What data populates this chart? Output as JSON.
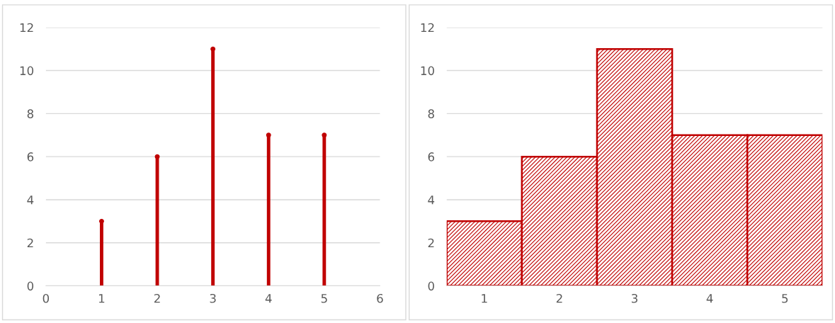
{
  "chart_data": [
    {
      "type": "lollipop",
      "x": [
        1,
        2,
        3,
        4,
        5
      ],
      "values": [
        3,
        6,
        11,
        7,
        7
      ],
      "color": "#c00000",
      "xlim": [
        0,
        6
      ],
      "xticks": [
        0,
        1,
        2,
        3,
        4,
        5,
        6
      ],
      "ylim": [
        0,
        12
      ],
      "yticks": [
        0,
        2,
        4,
        6,
        8,
        10,
        12
      ],
      "grid": "y",
      "marker": "circle"
    },
    {
      "type": "bar",
      "categories": [
        "1",
        "2",
        "3",
        "4",
        "5"
      ],
      "values": [
        3,
        6,
        11,
        7,
        7
      ],
      "color": "#c00000",
      "ylim": [
        0,
        12
      ],
      "yticks": [
        0,
        2,
        4,
        6,
        8,
        10,
        12
      ],
      "grid": "y"
    }
  ]
}
